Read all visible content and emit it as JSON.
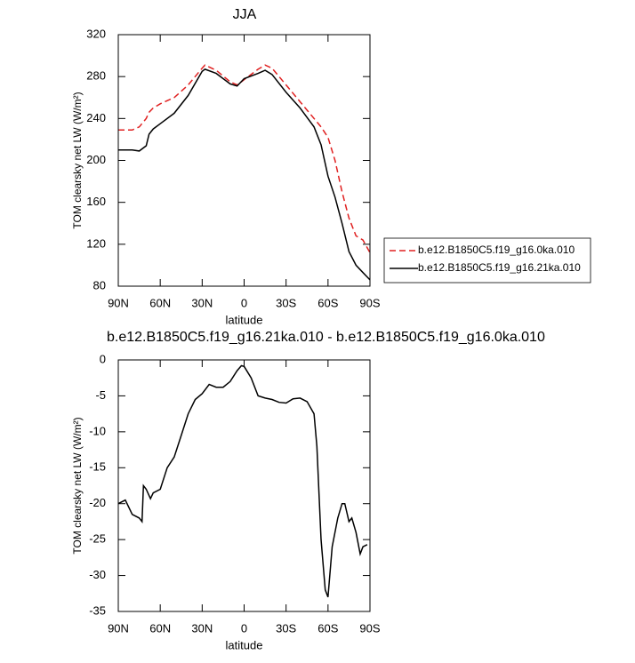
{
  "chart_data": [
    {
      "type": "line",
      "title": "JJA",
      "xlabel": "latitude",
      "ylabel": "TOM clearsky net LW (W/m²)",
      "x": [
        90,
        80,
        75,
        70,
        68,
        65,
        60,
        50,
        40,
        30,
        28,
        20,
        10,
        5,
        0,
        -10,
        -15,
        -20,
        -30,
        -40,
        -50,
        -55,
        -60,
        -65,
        -70,
        -75,
        -80,
        -85,
        -90
      ],
      "series": [
        {
          "name": "b.e12.B1850C5.f19_g16.0ka.010",
          "color": "#e02020",
          "dash": true,
          "values": [
            229,
            229,
            232,
            240,
            246,
            250,
            254,
            260,
            272,
            288,
            291,
            286,
            275,
            272,
            277,
            287,
            291,
            288,
            272,
            256,
            240,
            232,
            222,
            200,
            170,
            145,
            128,
            124,
            112
          ]
        },
        {
          "name": "b.e12.B1850C5.f19_g16.21ka.010",
          "color": "#000000",
          "dash": false,
          "values": [
            210,
            210,
            209,
            214,
            225,
            230,
            235,
            245,
            262,
            285,
            287,
            283,
            273,
            271,
            278,
            283,
            286,
            282,
            265,
            250,
            232,
            215,
            185,
            165,
            140,
            113,
            100,
            93,
            86
          ]
        }
      ],
      "xlim": [
        90,
        -90
      ],
      "xticks": [
        {
          "value": 90,
          "label": "90N"
        },
        {
          "value": 60,
          "label": "60N"
        },
        {
          "value": 30,
          "label": "30N"
        },
        0,
        {
          "value": -30,
          "label": "30S"
        },
        {
          "value": -60,
          "label": "60S"
        },
        {
          "value": -90,
          "label": "90S"
        }
      ],
      "ylim": [
        80,
        320
      ],
      "yticks": [
        80,
        120,
        160,
        200,
        240,
        280,
        320
      ]
    },
    {
      "type": "line",
      "title": "b.e12.B1850C5.f19_g16.21ka.010 - b.e12.B1850C5.f19_g16.0ka.010",
      "xlabel": "latitude",
      "ylabel": "TOM clearsky net LW (W/m²)",
      "x": [
        90,
        85,
        80,
        75,
        73,
        72,
        70,
        67,
        65,
        60,
        55,
        50,
        45,
        40,
        35,
        30,
        25,
        20,
        15,
        10,
        5,
        2,
        0,
        -5,
        -10,
        -15,
        -20,
        -25,
        -30,
        -35,
        -40,
        -45,
        -50,
        -52,
        -55,
        -58,
        -60,
        -63,
        -67,
        -70,
        -72,
        -75,
        -77,
        -80,
        -83,
        -85,
        -88
      ],
      "series": [
        {
          "color": "#000000",
          "dash": false,
          "values": [
            -20,
            -19.5,
            -21.5,
            -22,
            -22.5,
            -17.5,
            -18,
            -19.3,
            -18.5,
            -18,
            -15,
            -13.5,
            -10.5,
            -7.5,
            -5.5,
            -4.7,
            -3.4,
            -3.8,
            -3.8,
            -3,
            -1.5,
            -0.8,
            -0.9,
            -2.5,
            -5,
            -5.3,
            -5.5,
            -5.9,
            -6,
            -5.4,
            -5.3,
            -5.8,
            -7.5,
            -12,
            -25,
            -32,
            -33,
            -26,
            -22,
            -20,
            -20,
            -22.5,
            -22,
            -24,
            -27,
            -26,
            -25.7
          ]
        }
      ],
      "xlim": [
        90,
        -90
      ],
      "xticks": [
        {
          "value": 90,
          "label": "90N"
        },
        {
          "value": 60,
          "label": "60N"
        },
        {
          "value": 30,
          "label": "30N"
        },
        0,
        {
          "value": -30,
          "label": "30S"
        },
        {
          "value": -60,
          "label": "60S"
        },
        {
          "value": -90,
          "label": "90S"
        }
      ],
      "ylim": [
        -35,
        0
      ],
      "yticks": [
        -35,
        -30,
        -25,
        -20,
        -15,
        -10,
        -5,
        0
      ]
    }
  ]
}
